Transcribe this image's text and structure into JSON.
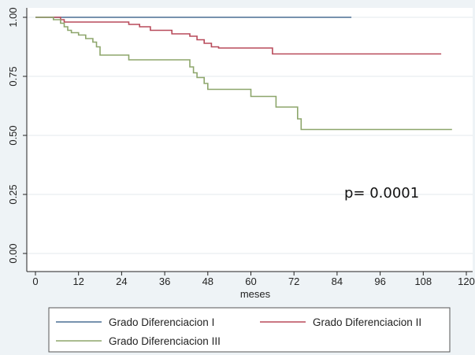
{
  "chart_data": {
    "type": "line",
    "step": true,
    "title": "",
    "xlabel": "meses",
    "ylabel": "",
    "xlim": [
      0,
      120
    ],
    "ylim": [
      0,
      1
    ],
    "x_ticks": [
      0,
      12,
      24,
      36,
      48,
      60,
      72,
      84,
      96,
      108,
      120
    ],
    "y_ticks": [
      "0.00",
      "0.25",
      "0.50",
      "0.75",
      "1.00"
    ],
    "grid": true,
    "legend_position": "bottom",
    "annotation": "p= 0.0001",
    "series": [
      {
        "name": "Grado Diferenciacion I",
        "color": "#4a6f93",
        "points": [
          [
            0,
            1.0
          ],
          [
            88,
            1.0
          ]
        ]
      },
      {
        "name": "Grado Diferenciacion II",
        "color": "#b84a5a",
        "points": [
          [
            0,
            1.0
          ],
          [
            7,
            1.0
          ],
          [
            7,
            0.99
          ],
          [
            8,
            0.99
          ],
          [
            8,
            0.98
          ],
          [
            26,
            0.98
          ],
          [
            26,
            0.97
          ],
          [
            29,
            0.97
          ],
          [
            29,
            0.96
          ],
          [
            32,
            0.96
          ],
          [
            32,
            0.945
          ],
          [
            38,
            0.945
          ],
          [
            38,
            0.93
          ],
          [
            43,
            0.93
          ],
          [
            43,
            0.92
          ],
          [
            45,
            0.92
          ],
          [
            45,
            0.905
          ],
          [
            47,
            0.905
          ],
          [
            47,
            0.89
          ],
          [
            49,
            0.89
          ],
          [
            49,
            0.875
          ],
          [
            51,
            0.875
          ],
          [
            51,
            0.87
          ],
          [
            66,
            0.87
          ],
          [
            66,
            0.845
          ],
          [
            113,
            0.845
          ]
        ]
      },
      {
        "name": "Grado Diferenciacion III",
        "color": "#8da66b",
        "points": [
          [
            0,
            1.0
          ],
          [
            5,
            1.0
          ],
          [
            5,
            0.99
          ],
          [
            7,
            0.99
          ],
          [
            7,
            0.975
          ],
          [
            8,
            0.975
          ],
          [
            8,
            0.96
          ],
          [
            9,
            0.96
          ],
          [
            9,
            0.945
          ],
          [
            10,
            0.945
          ],
          [
            10,
            0.935
          ],
          [
            12,
            0.935
          ],
          [
            12,
            0.925
          ],
          [
            14,
            0.925
          ],
          [
            14,
            0.91
          ],
          [
            16,
            0.91
          ],
          [
            16,
            0.895
          ],
          [
            17,
            0.895
          ],
          [
            17,
            0.875
          ],
          [
            18,
            0.875
          ],
          [
            18,
            0.84
          ],
          [
            26,
            0.84
          ],
          [
            26,
            0.82
          ],
          [
            43,
            0.82
          ],
          [
            43,
            0.79
          ],
          [
            44,
            0.79
          ],
          [
            44,
            0.765
          ],
          [
            45,
            0.765
          ],
          [
            45,
            0.745
          ],
          [
            47,
            0.745
          ],
          [
            47,
            0.72
          ],
          [
            48,
            0.72
          ],
          [
            48,
            0.695
          ],
          [
            60,
            0.695
          ],
          [
            60,
            0.665
          ],
          [
            67,
            0.665
          ],
          [
            67,
            0.62
          ],
          [
            73,
            0.62
          ],
          [
            73,
            0.57
          ],
          [
            74,
            0.57
          ],
          [
            74,
            0.525
          ],
          [
            116,
            0.525
          ]
        ]
      }
    ]
  }
}
